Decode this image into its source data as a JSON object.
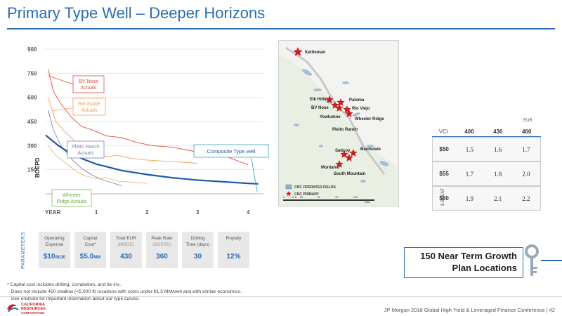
{
  "page": {
    "title": "Primary Type Well – Deeper Horizons",
    "conference": "JP Morgan 2018 Global High Yield & Leveraged Finance Conference | 42"
  },
  "chart_data": {
    "type": "line",
    "ylabel": "BOEPD",
    "xlabel": "YEAR",
    "yticks": [
      150,
      300,
      450,
      600,
      750,
      900
    ],
    "xticks": [
      "1",
      "2",
      "3",
      "4"
    ],
    "ylim": [
      0,
      900
    ],
    "xlim": [
      0,
      4.3
    ],
    "series": [
      {
        "name": "BV Nose Actuals",
        "color": "#e04a3a",
        "x": [
          0.05,
          0.15,
          0.3,
          0.5,
          0.7,
          0.9,
          1.2,
          1.5,
          1.8,
          2.1,
          2.5,
          3.0,
          3.5,
          4.0
        ],
        "values": [
          775,
          640,
          560,
          480,
          420,
          400,
          360,
          350,
          320,
          300,
          290,
          260,
          240,
          180
        ]
      },
      {
        "name": "Bardsdale Actuals",
        "color": "#f0a060",
        "x": [
          0.05,
          0.2,
          0.4,
          0.6,
          0.8,
          1.0,
          1.2,
          1.4,
          1.7,
          2.0,
          2.5,
          3.0
        ],
        "values": [
          600,
          450,
          380,
          320,
          280,
          260,
          230,
          240,
          220,
          210,
          200,
          190
        ]
      },
      {
        "name": "Pleito Ranch Actuals",
        "color": "#8080c0",
        "x": [
          0.05,
          0.15,
          0.3,
          0.5,
          0.7,
          0.9,
          1.1,
          1.3,
          1.5
        ],
        "values": [
          520,
          400,
          300,
          220,
          160,
          120,
          90,
          70,
          50
        ]
      },
      {
        "name": "Wheeler Ridge Actuals",
        "color": "#e0c070",
        "x": [
          0.05,
          0.2,
          0.4,
          0.6,
          0.8,
          1.0,
          1.2,
          1.4,
          1.6,
          1.8,
          2.0
        ],
        "values": [
          300,
          240,
          190,
          140,
          110,
          95,
          100,
          80,
          75,
          70,
          65
        ]
      },
      {
        "name": "Composite Type well",
        "color": "#1e5aa8",
        "x": [
          0,
          0.25,
          0.5,
          0.75,
          1.0,
          1.25,
          1.5,
          2.0,
          2.5,
          3.0,
          3.5,
          4.0,
          4.2
        ],
        "values": [
          365,
          300,
          250,
          215,
          185,
          165,
          145,
          120,
          100,
          85,
          75,
          65,
          62
        ]
      }
    ],
    "labels": {
      "bvnose": "BV Nose Actuals",
      "bardsdale": "Bardsdale Actuals",
      "pleito": "Pleito Ranch Actuals",
      "wheeler": "Wheeler Ridge Actuals",
      "composite": "Composite Type well"
    }
  },
  "map": {
    "legend_fields": "CRC OPERATED FIELDS",
    "legend_primary": "CRC PRIMARY",
    "scale_labels": [
      "0",
      "12.5",
      "25",
      "50",
      "75",
      "100"
    ],
    "scale_unit": "Miles",
    "locations": [
      {
        "name": "Kettleman"
      },
      {
        "name": "Elk Hills"
      },
      {
        "name": "BV Nose"
      },
      {
        "name": "Paloma"
      },
      {
        "name": "Rio Viejo"
      },
      {
        "name": "Yowlumne"
      },
      {
        "name": "Wheeler Ridge"
      },
      {
        "name": "Pleito Ranch"
      },
      {
        "name": "Saticoy"
      },
      {
        "name": "Bardsdale"
      },
      {
        "name": "Montalvo"
      },
      {
        "name": "South Mountain"
      }
    ]
  },
  "parameters": {
    "label": "PARAMETERS",
    "items": [
      {
        "h1": "Operating",
        "h2": "Expense",
        "sub": "",
        "value": "$10",
        "unit": "/BOE"
      },
      {
        "h1": "Capital",
        "h2": "Cost*",
        "sub": "",
        "value": "$5.0",
        "unit": "MM"
      },
      {
        "h1": "Total EUR",
        "h2": "",
        "sub": "(MBOE)",
        "value": "430",
        "unit": ""
      },
      {
        "h1": "Peak Rate",
        "h2": "",
        "sub": "(BOEPD)",
        "value": "360",
        "unit": ""
      },
      {
        "h1": "Drilling",
        "h2": "Time (days)",
        "sub": "",
        "value": "30",
        "unit": ""
      },
      {
        "h1": "Royalty",
        "h2": "",
        "sub": "",
        "value": "12%",
        "unit": ""
      }
    ]
  },
  "sensitivity": {
    "eur_label": "EUR",
    "vci_label": "VCI",
    "columns": [
      "400",
      "430",
      "460"
    ],
    "rows": [
      {
        "label": "$50",
        "values": [
          "1.5",
          "1.6",
          "1.7"
        ]
      },
      {
        "label": "$55",
        "values": [
          "1.7",
          "1.8",
          "2.0"
        ]
      },
      {
        "label": "$60",
        "values": [
          "1.9",
          "2.1",
          "2.2"
        ]
      }
    ],
    "brent_label": "$ BRENT"
  },
  "callout": {
    "line1": "150 Near Term Growth",
    "line2": "Plan Locations"
  },
  "footnotes": {
    "line1": "Capital cost includes drilling, completion, and tie-ins.",
    "line2": "Does not include 450 shallow (<5,000 ft) locations with costs under $1.5 MM/well and with similar economics.",
    "line3": "See endnote for important information about our type curves."
  },
  "logo": {
    "line1": "CALIFORNIA",
    "line2": "RESOURCES",
    "line3": "CORPORATION"
  },
  "colors": {
    "brand": "#2a6db5",
    "accent_red": "#d02020"
  }
}
